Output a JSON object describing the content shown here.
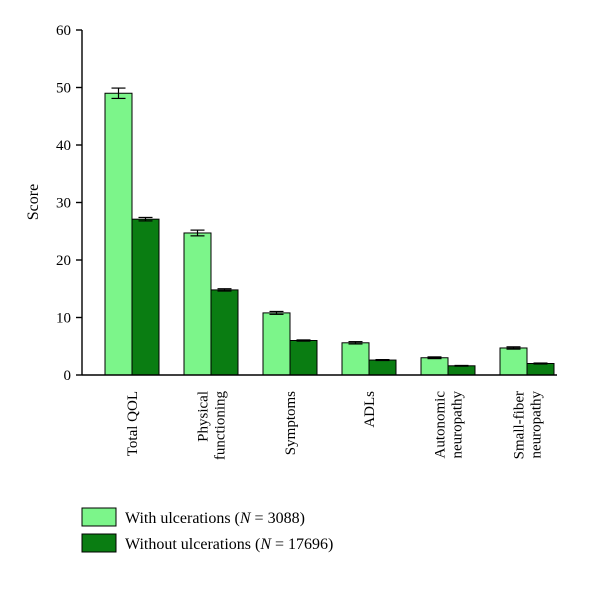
{
  "chart_data": {
    "type": "bar",
    "ylabel": "Score",
    "xlabel": "",
    "title": "",
    "ylim": [
      0,
      60
    ],
    "yticks": [
      0,
      10,
      20,
      30,
      40,
      50,
      60
    ],
    "categories": [
      [
        "Total QOL"
      ],
      [
        "Physical",
        "functioning"
      ],
      [
        "Symptoms"
      ],
      [
        "ADLs"
      ],
      [
        "Autonomic",
        "neuropathy"
      ],
      [
        "Small-fiber",
        "neuropathy"
      ]
    ],
    "series": [
      {
        "name": "With ulcerations (N = 3088)",
        "legend_prefix": "With ulcerations (",
        "legend_var": "N",
        "legend_suffix": " = 3088)",
        "color": "#7CF58A",
        "values": [
          49.0,
          24.7,
          10.8,
          5.6,
          3.0,
          4.7
        ],
        "errors": [
          0.9,
          0.5,
          0.25,
          0.2,
          0.15,
          0.2
        ]
      },
      {
        "name": "Without ulcerations (N = 17696)",
        "legend_prefix": "Without ulcerations (",
        "legend_var": "N",
        "legend_suffix": " = 17696)",
        "color": "#0A7D12",
        "values": [
          27.1,
          14.8,
          6.0,
          2.6,
          1.6,
          2.0
        ],
        "errors": [
          0.3,
          0.2,
          0.1,
          0.08,
          0.06,
          0.08
        ]
      }
    ],
    "grid": false,
    "legend_position": "bottom-left"
  }
}
